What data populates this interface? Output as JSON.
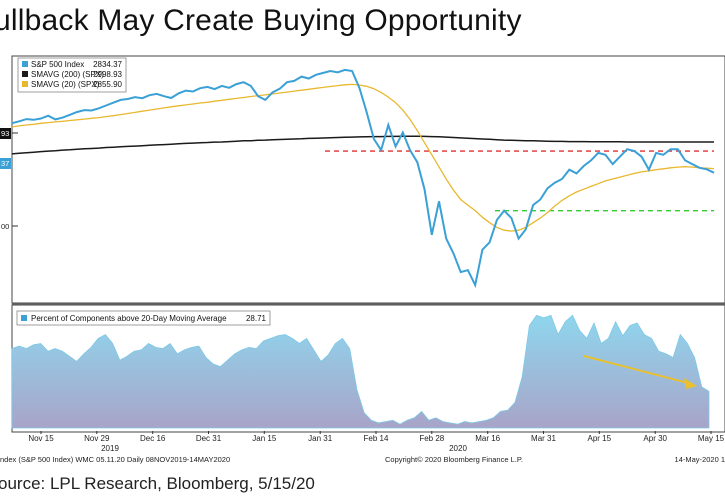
{
  "page": {
    "title": "ullback May Create Buying Opportunity",
    "source": "ource: LPL Research, Bloomberg, 5/15/20"
  },
  "colors": {
    "spx": "#3aa0d5",
    "sma200": "#1a1a1a",
    "sma20": "#e8b830",
    "resistance": "#e03030",
    "support": "#33cc33",
    "area_top": "#8fd6ee",
    "area_bottom": "#a8a4c8",
    "arrow": "#e8c030"
  },
  "chart_data": [
    {
      "type": "line",
      "legend": [
        {
          "label": "S&P 500 Index",
          "value": "2834.37",
          "color": "#3aa0d5"
        },
        {
          "label": "SMAVG (200) (SPX)",
          "value": "2998.93",
          "color": "#1a1a1a"
        },
        {
          "label": "SMAVG (20) (SPX)",
          "value": "2855.90",
          "color": "#e8b830"
        }
      ],
      "y_tags": {
        "left_top": "93",
        "left_mid": "37",
        "left_low": "00"
      },
      "ylim": [
        2150,
        3450
      ],
      "reference_lines": [
        {
          "name": "resistance",
          "y": 2950,
          "style": "dashed",
          "color": "#e03030"
        },
        {
          "name": "support",
          "y": 2630,
          "style": "dashed",
          "color": "#33cc33"
        }
      ],
      "series": [
        {
          "name": "S&P 500 Index",
          "values": [
            3100,
            3110,
            3122,
            3118,
            3125,
            3140,
            3120,
            3130,
            3145,
            3160,
            3170,
            3168,
            3180,
            3195,
            3210,
            3225,
            3230,
            3240,
            3234,
            3250,
            3257,
            3245,
            3235,
            3260,
            3275,
            3270,
            3288,
            3295,
            3283,
            3300,
            3290,
            3310,
            3320,
            3300,
            3245,
            3225,
            3265,
            3285,
            3320,
            3327,
            3350,
            3340,
            3360,
            3370,
            3380,
            3373,
            3386,
            3380,
            3290,
            3160,
            3015,
            2955,
            3090,
            2975,
            3050,
            2955,
            2890,
            2745,
            2500,
            2680,
            2480,
            2400,
            2300,
            2310,
            2230,
            2420,
            2460,
            2580,
            2630,
            2590,
            2480,
            2530,
            2660,
            2690,
            2750,
            2780,
            2800,
            2850,
            2830,
            2870,
            2900,
            2940,
            2930,
            2880,
            2920,
            2960,
            2950,
            2920,
            2850,
            2940,
            2930,
            2960,
            2960,
            2900,
            2880,
            2860,
            2852,
            2834
          ]
        },
        {
          "name": "SMAVG (200) (SPX)",
          "values": [
            2935,
            2938,
            2941,
            2944,
            2947,
            2950,
            2952,
            2955,
            2957,
            2960,
            2962,
            2964,
            2966,
            2969,
            2971,
            2973,
            2975,
            2977,
            2979,
            2981,
            2983,
            2985,
            2987,
            2989,
            2991,
            2993,
            2995,
            2996,
            2998,
            2999,
            3001,
            3003,
            3005,
            3006,
            3008,
            3009,
            3011,
            3012,
            3014,
            3015,
            3016,
            3018,
            3019,
            3020,
            3022,
            3023,
            3024,
            3025,
            3026,
            3027,
            3028,
            3028,
            3029,
            3029,
            3030,
            3030,
            3030,
            3029,
            3028,
            3027,
            3025,
            3023,
            3021,
            3019,
            3017,
            3015,
            3013,
            3011,
            3009,
            3008,
            3007,
            3006,
            3005,
            3004,
            3003,
            3002,
            3002,
            3001,
            3001,
            3001,
            3000,
            3000,
            3000,
            3000,
            3000,
            2999,
            2999,
            2999,
            2999,
            2999,
            2999,
            2999,
            2999,
            2999,
            2999,
            2999,
            2999,
            2999
          ]
        },
        {
          "name": "SMAVG (20) (SPX)",
          "values": [
            3080,
            3085,
            3090,
            3094,
            3099,
            3103,
            3107,
            3110,
            3114,
            3118,
            3122,
            3126,
            3130,
            3135,
            3140,
            3146,
            3152,
            3158,
            3164,
            3170,
            3176,
            3182,
            3188,
            3193,
            3198,
            3203,
            3208,
            3212,
            3218,
            3223,
            3228,
            3233,
            3238,
            3243,
            3248,
            3252,
            3257,
            3262,
            3267,
            3272,
            3277,
            3282,
            3287,
            3292,
            3297,
            3302,
            3306,
            3308,
            3305,
            3298,
            3285,
            3265,
            3240,
            3210,
            3170,
            3120,
            3060,
            2995,
            2930,
            2865,
            2800,
            2740,
            2690,
            2660,
            2630,
            2595,
            2565,
            2540,
            2525,
            2520,
            2525,
            2540,
            2565,
            2590,
            2620,
            2655,
            2685,
            2710,
            2730,
            2745,
            2760,
            2775,
            2790,
            2800,
            2810,
            2820,
            2830,
            2838,
            2844,
            2850,
            2855,
            2860,
            2864,
            2866,
            2864,
            2860,
            2858,
            2856
          ]
        }
      ]
    },
    {
      "type": "area",
      "legend": [
        {
          "label": "Percent of Components above 20-Day Moving Average",
          "value": "28.71",
          "color": "#3aa0d5"
        }
      ],
      "ylim": [
        0,
        100
      ],
      "series": [
        {
          "name": "Percent of Components above 20-Day Moving Average",
          "values": [
            62,
            64,
            62,
            65,
            66,
            60,
            62,
            60,
            56,
            52,
            58,
            63,
            70,
            73,
            66,
            53,
            56,
            60,
            61,
            66,
            63,
            62,
            66,
            58,
            61,
            63,
            64,
            55,
            50,
            48,
            53,
            58,
            61,
            63,
            62,
            68,
            70,
            72,
            73,
            70,
            66,
            70,
            61,
            52,
            57,
            66,
            70,
            62,
            30,
            12,
            6,
            4,
            5,
            6,
            3,
            6,
            8,
            13,
            6,
            8,
            5,
            4,
            3,
            5,
            4,
            5,
            6,
            8,
            13,
            14,
            20,
            40,
            80,
            88,
            86,
            88,
            73,
            83,
            88,
            76,
            70,
            82,
            66,
            70,
            83,
            72,
            80,
            82,
            73,
            70,
            60,
            58,
            55,
            73,
            66,
            55,
            32,
            28.71
          ]
        }
      ]
    },
    {
      "type": "axis",
      "x_ticks": [
        "Nov 15",
        "Nov 29",
        "Dec 16",
        "Dec 31",
        "Jan 15",
        "Jan 31",
        "Feb 14",
        "Feb 28",
        "Mar 16",
        "Mar 31",
        "Apr 15",
        "Apr 30",
        "May 15"
      ],
      "year_labels": [
        {
          "label": "2019"
        },
        {
          "label": "2020"
        }
      ],
      "footer_left": "ndex (S&P 500 Index) WMC 05.11.20  Daily 08NOV2019-14MAY2020",
      "footer_center": "Copyright© 2020 Bloomberg Finance L.P.",
      "footer_right": "14-May-2020 1"
    }
  ]
}
